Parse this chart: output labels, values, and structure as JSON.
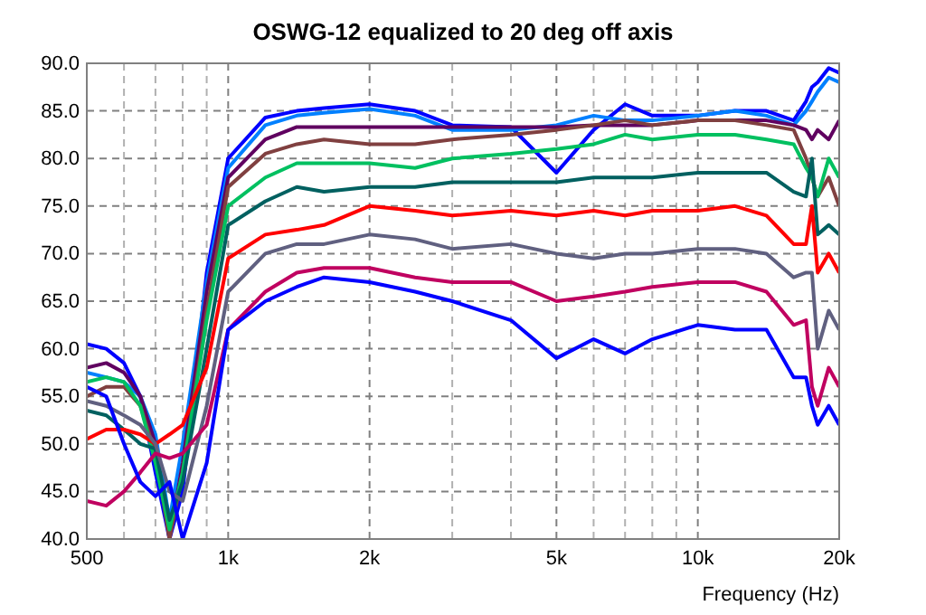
{
  "chart_data": {
    "type": "line",
    "title": "OSWG-12 equalized to 20 deg off axis",
    "xlabel": "Frequency (Hz)",
    "log": "x",
    "grid": true,
    "line_style": "solid",
    "marker": "none",
    "x": [
      500,
      550,
      600,
      650,
      700,
      750,
      800,
      900,
      1000,
      1200,
      1400,
      1600,
      2000,
      2500,
      3000,
      4000,
      5000,
      6000,
      7000,
      8000,
      10000,
      12000,
      14000,
      16000,
      17000,
      17500,
      18000,
      19000,
      20000
    ],
    "xlim": [
      500,
      20000
    ],
    "xticks": [
      500,
      {
        "value": 600,
        "label": null
      },
      {
        "value": 700,
        "label": null
      },
      {
        "value": 800,
        "label": null
      },
      {
        "value": 900,
        "label": null
      },
      {
        "value": 1000,
        "label": "1k"
      },
      {
        "value": 2000,
        "label": "2k"
      },
      {
        "value": 3000,
        "label": null
      },
      {
        "value": 4000,
        "label": null
      },
      {
        "value": 5000,
        "label": "5k"
      },
      {
        "value": 6000,
        "label": null
      },
      {
        "value": 7000,
        "label": null
      },
      {
        "value": 8000,
        "label": null
      },
      {
        "value": 9000,
        "label": null
      },
      {
        "value": 10000,
        "label": "10k"
      },
      {
        "value": 20000,
        "label": "20k"
      }
    ],
    "ylim": [
      40,
      90
    ],
    "yticks": [
      {
        "value": 40,
        "label": "40.0"
      },
      {
        "value": 45,
        "label": "45.0"
      },
      {
        "value": 50,
        "label": "50.0"
      },
      {
        "value": 55,
        "label": "55.0"
      },
      {
        "value": 60,
        "label": "60.0"
      },
      {
        "value": 65,
        "label": "65.0"
      },
      {
        "value": 70,
        "label": "70.0"
      },
      {
        "value": 75,
        "label": "75.0"
      },
      {
        "value": 80,
        "label": "80.0"
      },
      {
        "value": 85,
        "label": "85.0"
      },
      {
        "value": 90,
        "label": "90.0"
      }
    ],
    "series": [
      {
        "color": "#0000ff",
        "values": [
          60.5,
          60,
          58.5,
          55,
          47,
          40,
          45,
          68,
          80,
          84.3,
          85,
          85.3,
          85.7,
          85,
          83.5,
          83.3,
          78.5,
          83,
          85.7,
          84.5,
          84.5,
          85,
          85,
          84,
          86,
          87.5,
          88,
          89.5,
          89
        ]
      },
      {
        "color": "#0080ff",
        "values": [
          57.5,
          57,
          56.5,
          55,
          51,
          42,
          50,
          67,
          79,
          83.5,
          84.5,
          84.8,
          85.2,
          84.5,
          83,
          83,
          83.5,
          84.5,
          84,
          84,
          84.5,
          85,
          84.5,
          83.5,
          85,
          86,
          87,
          88.5,
          88
        ]
      },
      {
        "color": "#600060",
        "values": [
          58,
          58.5,
          57.5,
          55,
          50,
          40,
          48,
          66,
          78,
          82,
          83.3,
          83.3,
          83.3,
          83.3,
          83.3,
          83.3,
          83.3,
          83.5,
          83.5,
          83.5,
          84,
          84,
          84,
          83.5,
          83,
          82,
          83,
          82,
          84
        ]
      },
      {
        "color": "#804040",
        "values": [
          55,
          56,
          56,
          54,
          49,
          40,
          47,
          64,
          77,
          80.5,
          81.5,
          82,
          81.5,
          81.5,
          82,
          82.5,
          83,
          83.5,
          84,
          83.5,
          84,
          84,
          83.5,
          83,
          80,
          78,
          76,
          78,
          75
        ]
      },
      {
        "color": "#00c060",
        "values": [
          56.5,
          57,
          56.5,
          54,
          48,
          41,
          47,
          63,
          75,
          78,
          79.5,
          79.5,
          79.5,
          79,
          80,
          80.5,
          81,
          81.5,
          82.5,
          82,
          82.5,
          82.5,
          82,
          81.5,
          79,
          78,
          76,
          80,
          78
        ]
      },
      {
        "color": "#006060",
        "values": [
          53.5,
          53,
          51.5,
          50,
          49.5,
          42,
          46,
          60,
          73,
          75.5,
          77,
          76.5,
          77,
          77,
          77.5,
          77.5,
          77.5,
          78,
          78,
          78,
          78.5,
          78.5,
          78.5,
          76.5,
          76,
          80,
          72,
          73,
          72
        ]
      },
      {
        "color": "#ff0000",
        "values": [
          50.5,
          51.5,
          51.5,
          51,
          50,
          51,
          52,
          58,
          69.5,
          72,
          72.5,
          73,
          75,
          74.5,
          74,
          74.5,
          74,
          74.5,
          74,
          74.5,
          74.5,
          75,
          74,
          71,
          71,
          75,
          68,
          70,
          68
        ]
      },
      {
        "color": "#606080",
        "values": [
          54.5,
          54,
          53,
          52,
          50,
          45,
          44,
          54,
          66,
          70,
          71,
          71,
          72,
          71.5,
          70.5,
          71,
          70,
          69.5,
          70,
          70,
          70.5,
          70.5,
          70,
          67.5,
          68,
          68,
          60,
          64,
          62
        ]
      },
      {
        "color": "#c00060",
        "values": [
          44,
          43.5,
          45,
          47,
          49,
          48.5,
          49,
          52,
          62,
          66,
          68,
          68.5,
          68.5,
          67.5,
          67,
          67,
          65,
          65.5,
          66,
          66.5,
          67,
          67,
          66,
          62.5,
          63,
          56,
          54,
          58,
          56
        ]
      },
      {
        "color": "#0000ff",
        "values": [
          56,
          55,
          50,
          46,
          44.5,
          46,
          40,
          48,
          62,
          65,
          66.5,
          67.5,
          67,
          66,
          65,
          63,
          59,
          61,
          59.5,
          61,
          62.5,
          62,
          62,
          57,
          57,
          54,
          52,
          54,
          52
        ]
      }
    ]
  }
}
